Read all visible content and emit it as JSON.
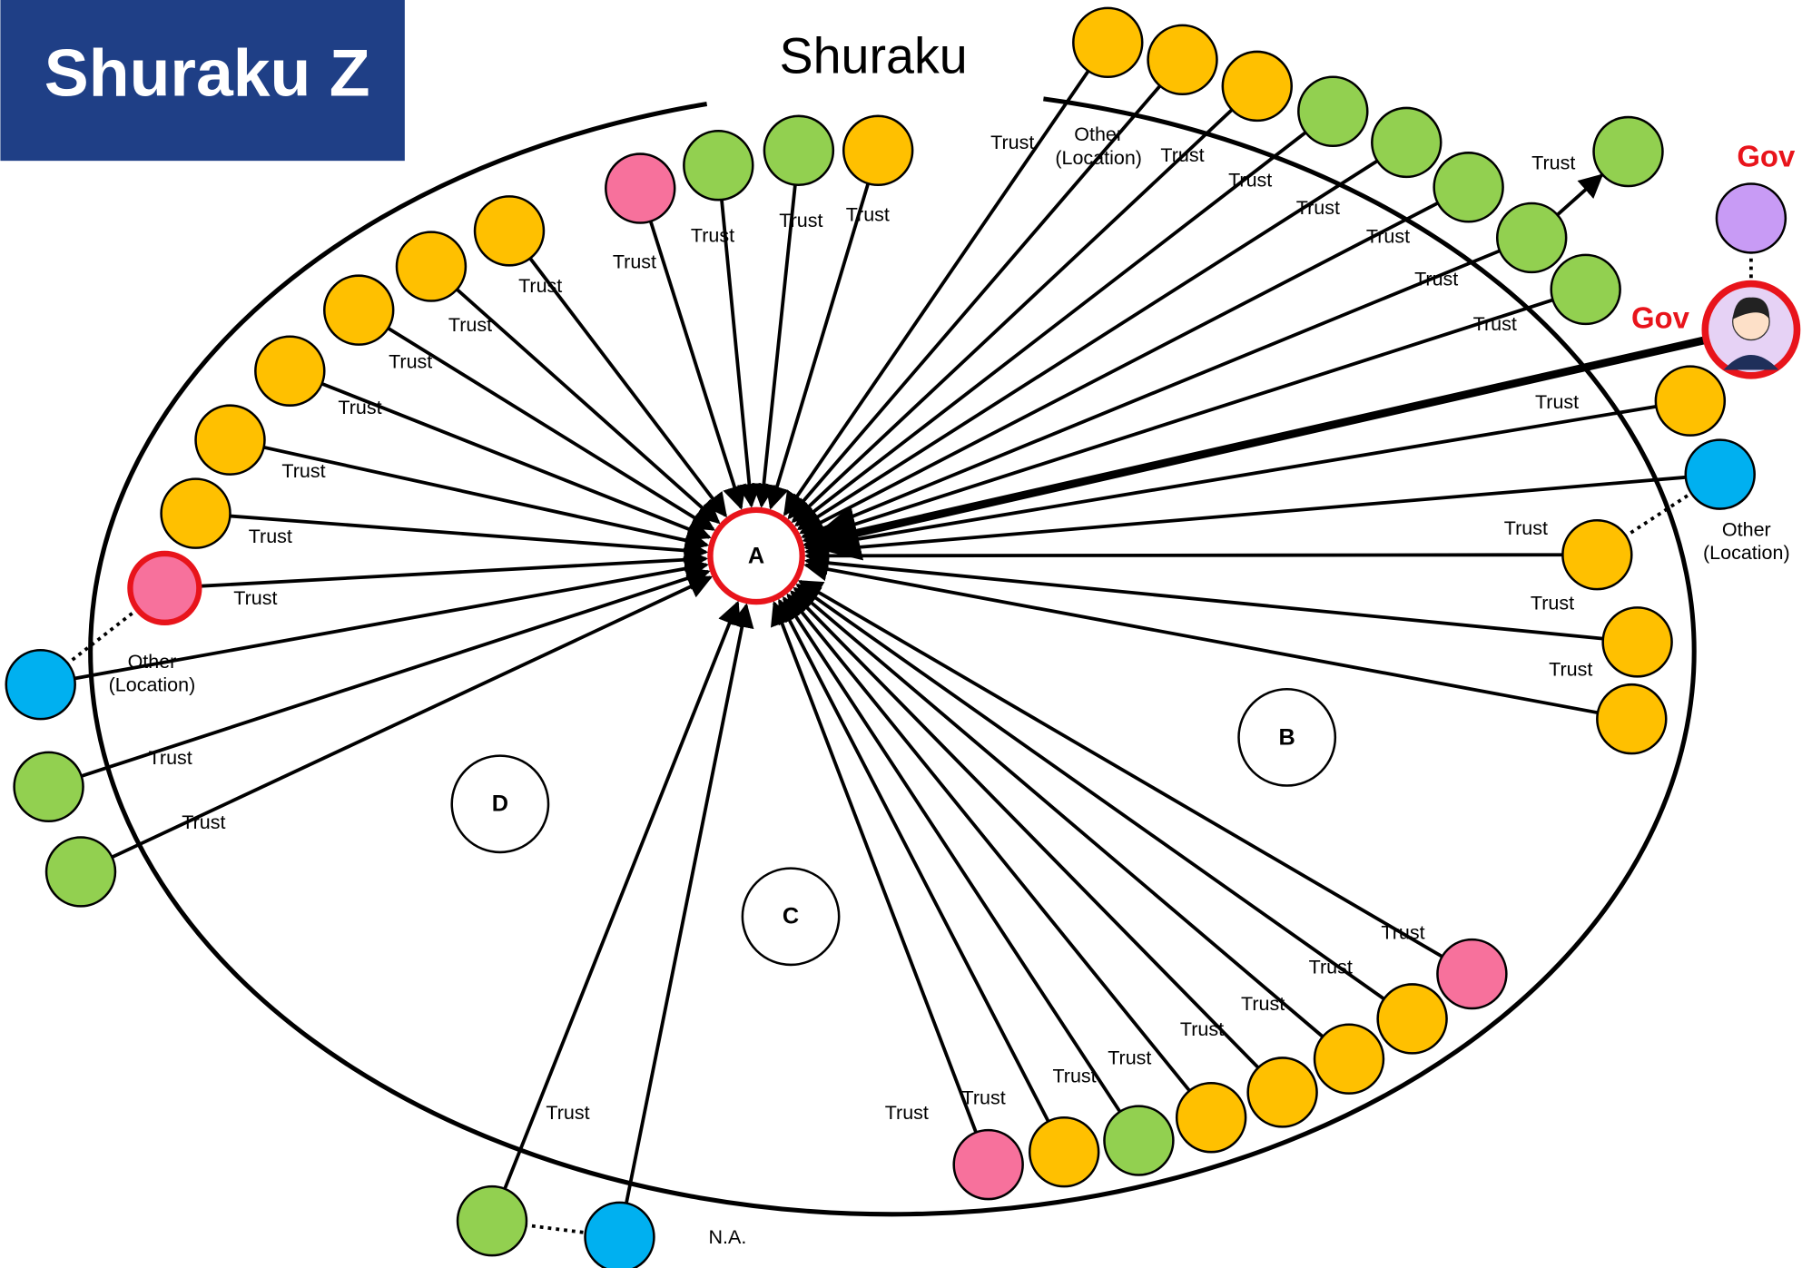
{
  "header": {
    "title": "Shuraku Z"
  },
  "title": "Shuraku",
  "regions": [
    "A",
    "B",
    "C",
    "D"
  ],
  "edge_labels": [
    "Trust",
    "Trust",
    "Trust",
    "Trust",
    "Trust",
    "Trust",
    "Trust",
    "Trust",
    "Trust",
    "Trust",
    "Trust",
    "Trust",
    "Trust",
    "Trust",
    "Trust",
    "Trust",
    "Trust",
    "Trust",
    "Trust",
    "Trust",
    "Trust",
    "Trust",
    "Trust",
    "Trust",
    "Trust",
    "Trust",
    "Trust",
    "Trust",
    "Trust",
    "Trust",
    "Trust",
    "Trust",
    "Trust",
    "Trust"
  ],
  "location_labels": [
    {
      "lines": [
        "Other",
        "(Location)"
      ]
    },
    {
      "lines": [
        "Other",
        "(Location)"
      ]
    },
    {
      "lines": [
        "Other",
        "(Location)"
      ]
    }
  ],
  "gov_labels": [
    "Gov",
    "Gov"
  ],
  "na_label": "N.A."
}
